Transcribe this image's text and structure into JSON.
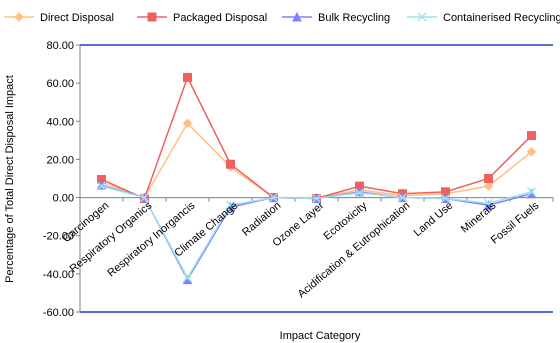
{
  "chart_data": {
    "type": "line",
    "title": "",
    "xlabel": "Impact Category",
    "ylabel": "Percentage of Total Direct Disposal Impact",
    "ylim": [
      -60,
      80
    ],
    "ytick_step": 20,
    "ytick_labels": [
      "80.00",
      "60.00",
      "40.00",
      "20.00",
      "0.00",
      "-20.00",
      "-40.00",
      "-60.00"
    ],
    "grid": false,
    "legend_position": "top",
    "categories": [
      "Carcinogen",
      "Respiratory Organics",
      "Respiratory Inorgancis",
      "Climate Change",
      "Radiation",
      "Ozone Layer",
      "Ecotoxicity",
      "Acidification & Eutrophication",
      "Land Use",
      "Minerals",
      "Fossil Fuels"
    ],
    "series": [
      {
        "name": "Direct Disposal",
        "color": "#FFC080",
        "marker": "diamond",
        "values": [
          8,
          0,
          39,
          16,
          0,
          0,
          4,
          1,
          2,
          6,
          24
        ]
      },
      {
        "name": "Packaged Disposal",
        "color": "#F06060",
        "marker": "square",
        "values": [
          9.5,
          -0.5,
          63,
          17.5,
          0,
          -0.5,
          6,
          2,
          3,
          10,
          32.5
        ]
      },
      {
        "name": "Bulk Recycling",
        "color": "#8080FF",
        "marker": "triangle",
        "values": [
          6.5,
          0,
          -43,
          -5,
          0,
          -0.5,
          3,
          0,
          -0.5,
          -4,
          2
        ]
      },
      {
        "name": "Containerised Recycling",
        "color": "#A0E0F0",
        "marker": "x",
        "values": [
          6,
          0,
          -42,
          -4,
          0,
          -0.5,
          2.5,
          0,
          -0.5,
          -3,
          3
        ]
      }
    ]
  }
}
